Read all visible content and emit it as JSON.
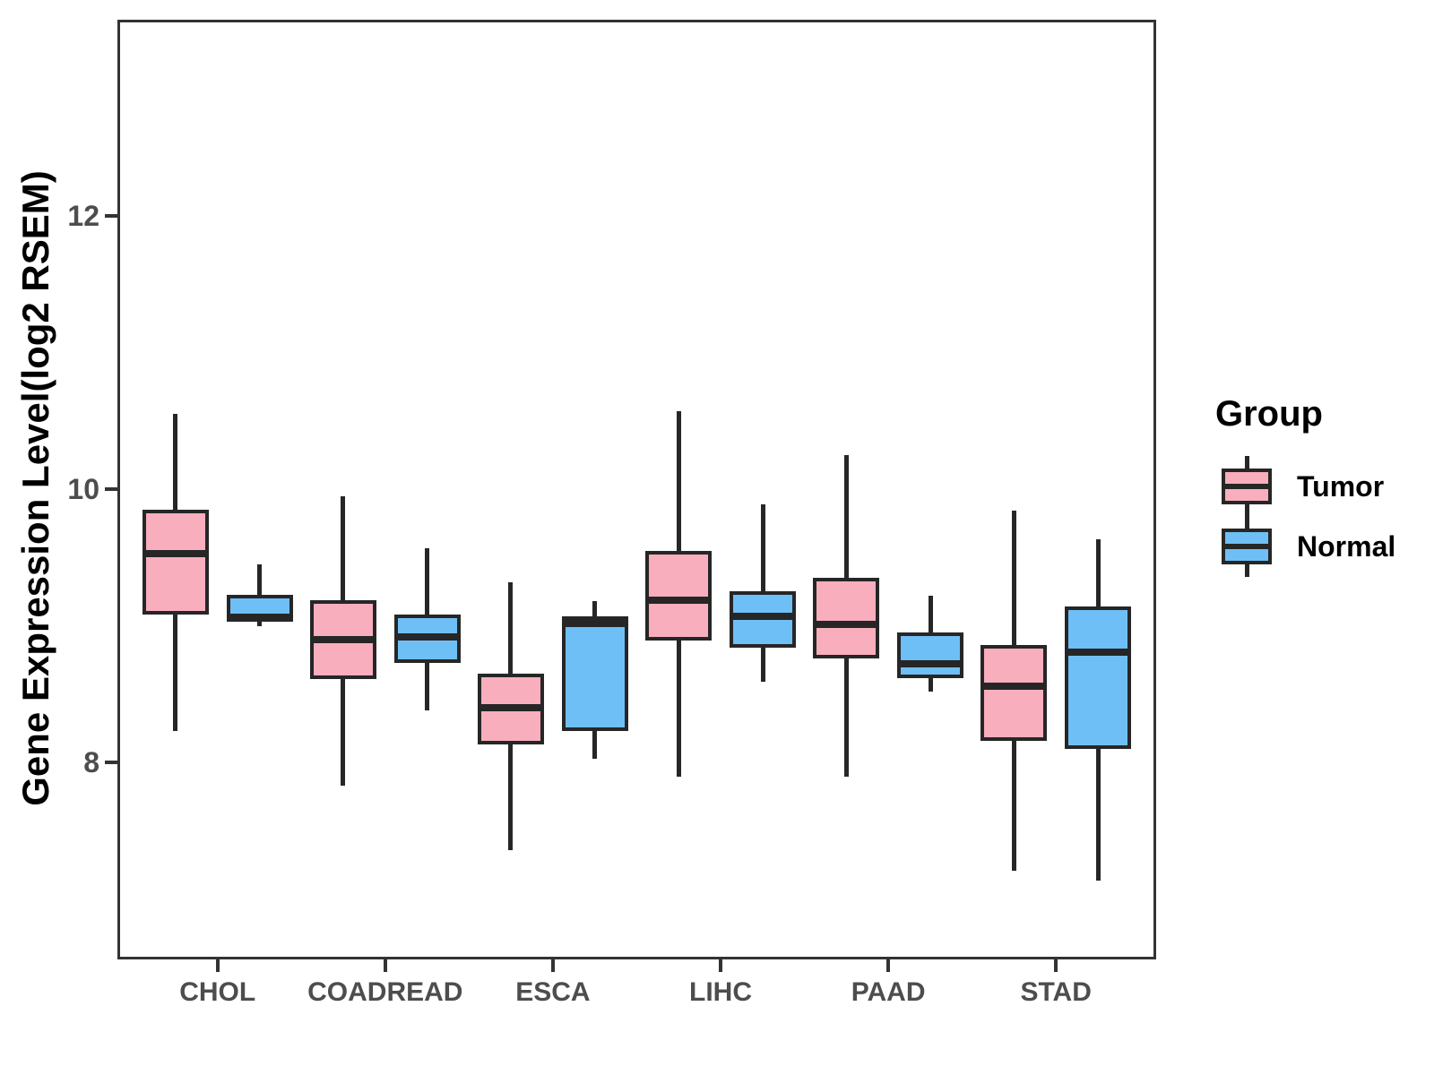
{
  "figure": {
    "y_axis": {
      "title": "Gene Expression Level(log2 RSEM)",
      "ticks": [
        "12",
        "10",
        "8"
      ],
      "tick_values": [
        12,
        10,
        8
      ]
    },
    "x_axis": {
      "categories": [
        "CHOL",
        "COADREAD",
        "ESCA",
        "LIHC",
        "PAAD",
        "STAD"
      ]
    },
    "legend": {
      "title": "Group",
      "items": [
        {
          "label": "Tumor",
          "color": "#F9AEBD"
        },
        {
          "label": "Normal",
          "color": "#6FBFF7"
        }
      ]
    },
    "colors": {
      "tumor_fill": "#F9AEBD",
      "normal_fill": "#6FBFF7",
      "line": "#262626",
      "axis_text": "#4d4d4d",
      "panel_border": "#333333"
    }
  },
  "chart_data": {
    "type": "boxplot",
    "title": "",
    "xlabel": "",
    "ylabel": "Gene Expression Level(log2 RSEM)",
    "categories": [
      "CHOL",
      "COADREAD",
      "ESCA",
      "LIHC",
      "PAAD",
      "STAD"
    ],
    "yticks": [
      8,
      10,
      12
    ],
    "ylim": [
      6.6,
      13.4
    ],
    "grid": false,
    "legend_position": "right",
    "series": [
      {
        "name": "Tumor",
        "color": "#F9AEBD",
        "boxes": [
          {
            "category": "CHOL",
            "min": 8.23,
            "q1": 9.08,
            "median": 9.53,
            "q3": 9.85,
            "max": 10.55
          },
          {
            "category": "COADREAD",
            "min": 7.83,
            "q1": 8.61,
            "median": 8.9,
            "q3": 9.19,
            "max": 9.95
          },
          {
            "category": "ESCA",
            "min": 7.36,
            "q1": 8.13,
            "median": 8.4,
            "q3": 8.65,
            "max": 9.32
          },
          {
            "category": "LIHC",
            "min": 7.9,
            "q1": 8.89,
            "median": 9.19,
            "q3": 9.55,
            "max": 10.57
          },
          {
            "category": "PAAD",
            "min": 7.9,
            "q1": 8.76,
            "median": 9.01,
            "q3": 9.35,
            "max": 10.25
          },
          {
            "category": "STAD",
            "min": 7.21,
            "q1": 8.16,
            "median": 8.56,
            "q3": 8.86,
            "max": 9.84
          }
        ]
      },
      {
        "name": "Normal",
        "color": "#6FBFF7",
        "boxes": [
          {
            "category": "CHOL",
            "min": 9.0,
            "q1": 9.03,
            "median": 9.06,
            "q3": 9.23,
            "max": 9.45
          },
          {
            "category": "COADREAD",
            "min": 8.38,
            "q1": 8.73,
            "median": 8.92,
            "q3": 9.08,
            "max": 9.57
          },
          {
            "category": "ESCA",
            "min": 8.03,
            "q1": 8.23,
            "median": 9.02,
            "q3": 9.07,
            "max": 9.18
          },
          {
            "category": "LIHC",
            "min": 8.59,
            "q1": 8.84,
            "median": 9.07,
            "q3": 9.25,
            "max": 9.89
          },
          {
            "category": "PAAD",
            "min": 8.52,
            "q1": 8.62,
            "median": 8.72,
            "q3": 8.95,
            "max": 9.22
          },
          {
            "category": "STAD",
            "min": 7.14,
            "q1": 8.1,
            "median": 8.81,
            "q3": 9.14,
            "max": 9.63
          }
        ]
      }
    ]
  }
}
